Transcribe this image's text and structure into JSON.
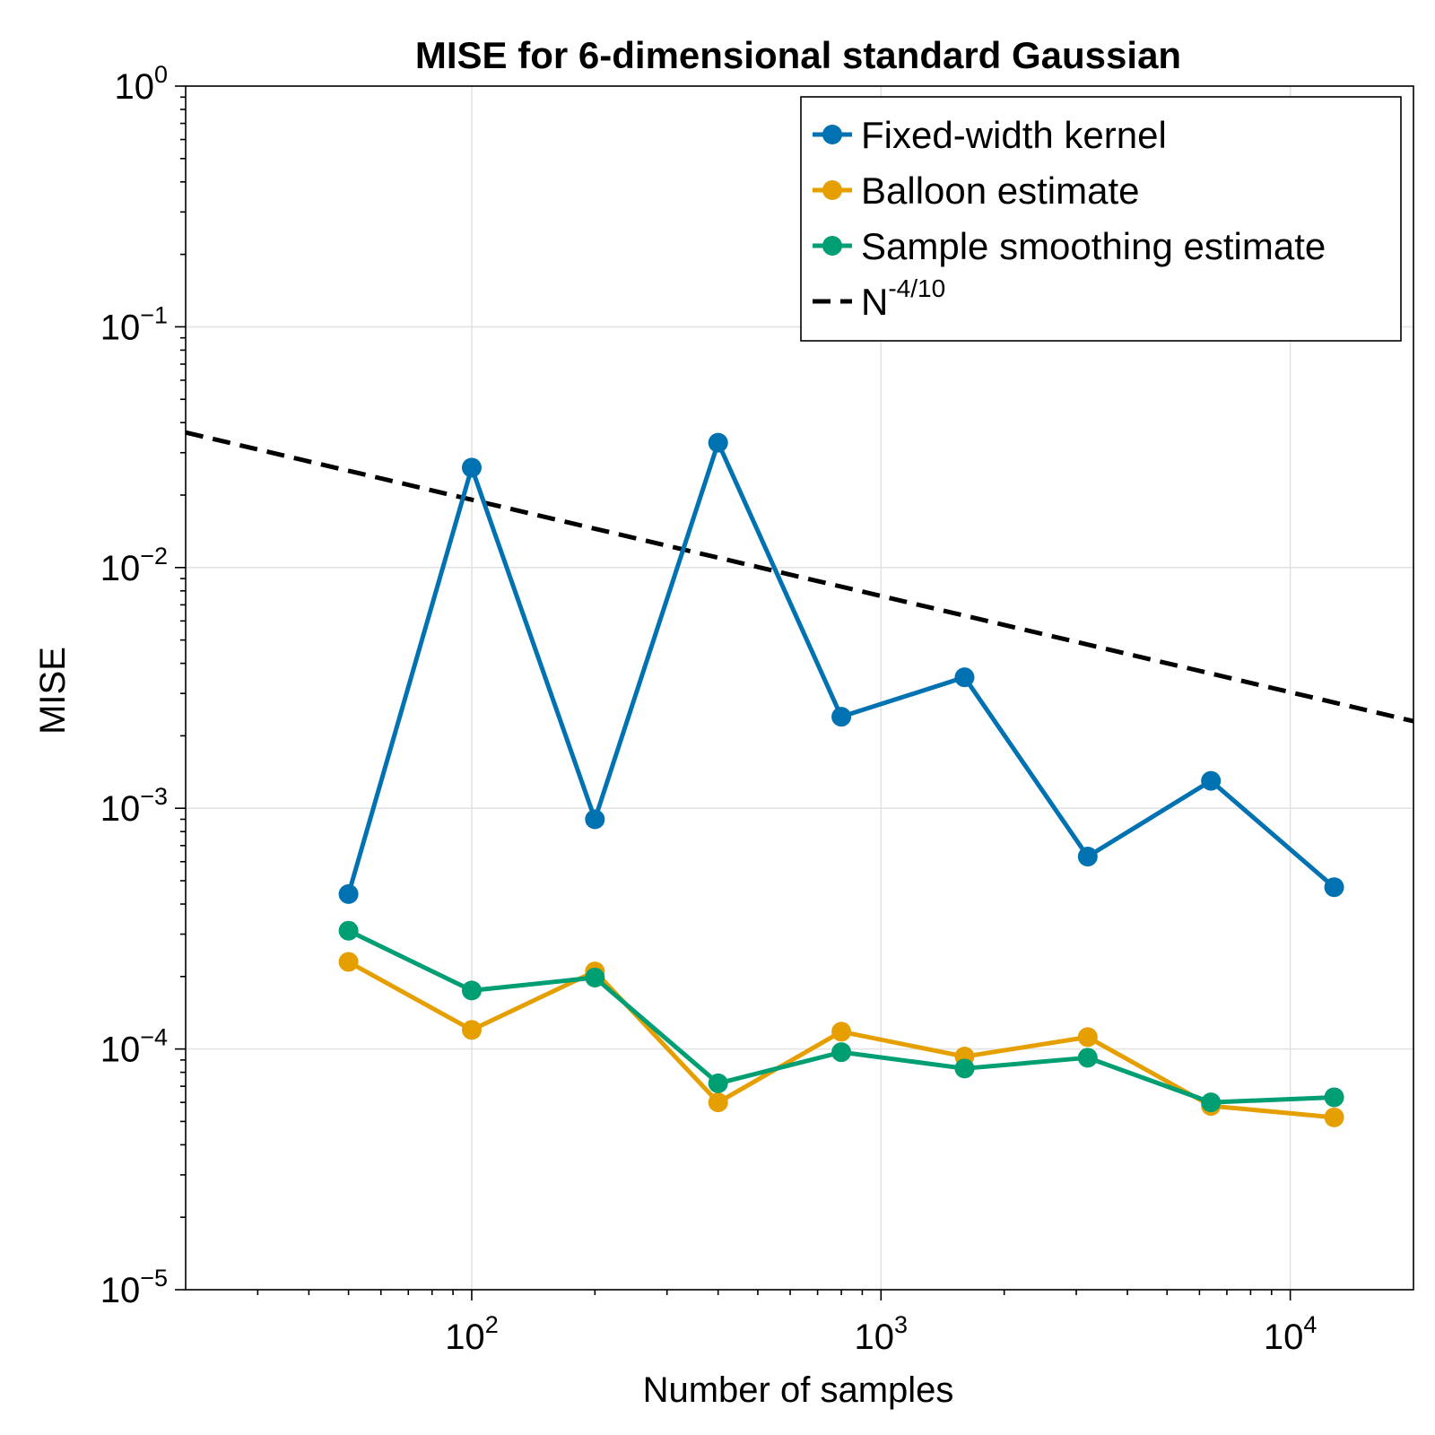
{
  "chart_data": {
    "type": "line",
    "title": "MISE for 6-dimensional standard Gaussian",
    "xlabel": "Number of samples",
    "ylabel": "MISE",
    "xscale": "log",
    "yscale": "log",
    "xlim": [
      20,
      20000
    ],
    "ylim": [
      1e-05,
      1
    ],
    "grid": true,
    "legend_position": "top-right",
    "x_ticks": [
      {
        "value": 100,
        "base": "10",
        "exp": "2"
      },
      {
        "value": 1000,
        "base": "10",
        "exp": "3"
      },
      {
        "value": 10000,
        "base": "10",
        "exp": "4"
      }
    ],
    "y_ticks": [
      {
        "value": 1,
        "base": "10",
        "exp": "0"
      },
      {
        "value": 0.1,
        "base": "10",
        "exp": "−1"
      },
      {
        "value": 0.01,
        "base": "10",
        "exp": "−2"
      },
      {
        "value": 0.001,
        "base": "10",
        "exp": "−3"
      },
      {
        "value": 0.0001,
        "base": "10",
        "exp": "−4"
      },
      {
        "value": 1e-05,
        "base": "10",
        "exp": "−5"
      }
    ],
    "x": [
      50,
      100,
      200,
      400,
      800,
      1600,
      3200,
      6400,
      12800
    ],
    "series": [
      {
        "name": "Fixed-width kernel",
        "color": "#0072b2",
        "marker": "circle",
        "values": [
          0.00044,
          0.026,
          0.0009,
          0.033,
          0.0024,
          0.0035,
          0.00063,
          0.0013,
          0.00047
        ]
      },
      {
        "name": "Balloon estimate",
        "color": "#e69f00",
        "marker": "circle",
        "values": [
          0.00023,
          0.00012,
          0.00021,
          6e-05,
          0.000118,
          9.3e-05,
          0.000112,
          5.8e-05,
          5.2e-05
        ]
      },
      {
        "name": "Sample smoothing estimate",
        "color": "#009e73",
        "marker": "circle",
        "values": [
          0.00031,
          0.000175,
          0.000198,
          7.2e-05,
          9.7e-05,
          8.3e-05,
          9.2e-05,
          6e-05,
          6.3e-05
        ]
      }
    ],
    "reference_line": {
      "name_base": "N",
      "name_exp": "-4/10",
      "color": "#000000",
      "style": "dashed",
      "x": [
        20,
        20000
      ],
      "values": [
        0.0364,
        0.0023
      ]
    }
  }
}
